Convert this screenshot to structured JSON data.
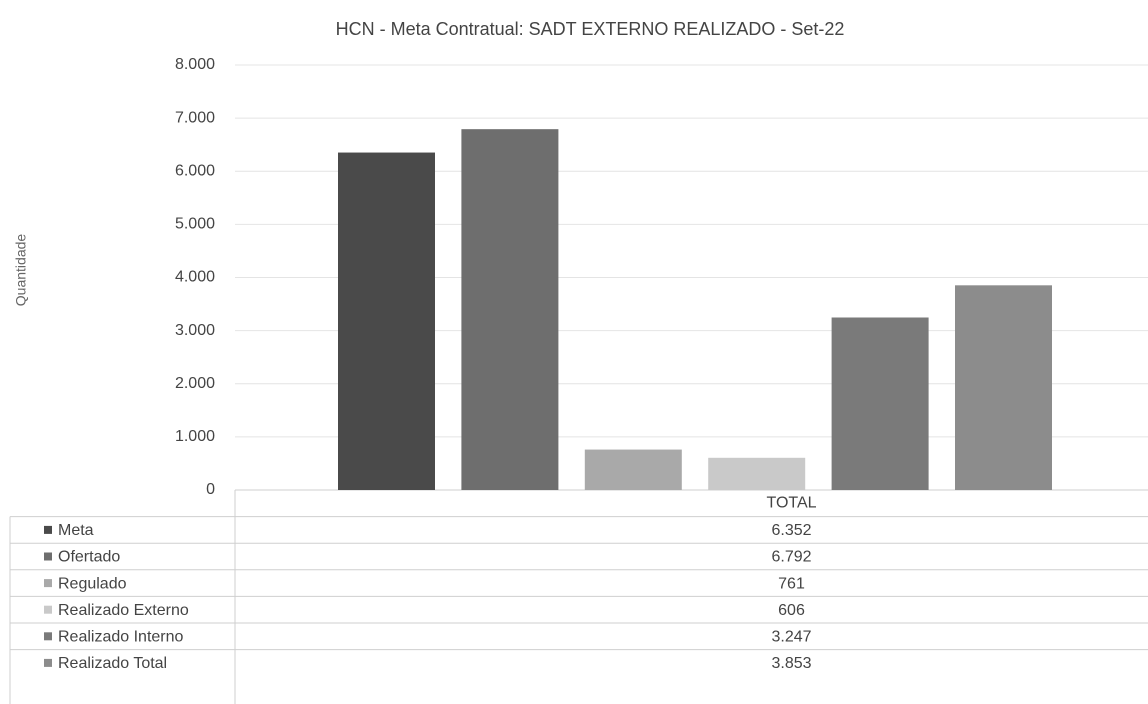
{
  "chart_data": {
    "type": "bar",
    "title": "HCN - Meta Contratual: SADT EXTERNO REALIZADO - Set-22",
    "y_label": "Quantidade",
    "categories": [
      "TOTAL"
    ],
    "series": [
      {
        "name": "Meta",
        "color": "#4a4a4a",
        "values": [
          6352
        ],
        "value_labels": [
          "6.352"
        ]
      },
      {
        "name": "Ofertado",
        "color": "#6e6e6e",
        "values": [
          6792
        ],
        "value_labels": [
          "6.792"
        ]
      },
      {
        "name": "Regulado",
        "color": "#a9a9a9",
        "values": [
          761
        ],
        "value_labels": [
          "761"
        ]
      },
      {
        "name": "Realizado Externo",
        "color": "#c9c9c9",
        "values": [
          606
        ],
        "value_labels": [
          "606"
        ]
      },
      {
        "name": "Realizado Interno",
        "color": "#7a7a7a",
        "values": [
          3247
        ],
        "value_labels": [
          "3.247"
        ]
      },
      {
        "name": "Realizado Total",
        "color": "#8c8c8c",
        "values": [
          3853
        ],
        "value_labels": [
          "3.853"
        ]
      }
    ],
    "ylim": [
      0,
      8000
    ],
    "yticks": [
      0,
      {
        "value": 1000,
        "label": "1.000"
      },
      {
        "value": 2000,
        "label": "2.000"
      },
      {
        "value": 3000,
        "label": "3.000"
      },
      {
        "value": 4000,
        "label": "4.000"
      },
      {
        "value": 5000,
        "label": "5.000"
      },
      {
        "value": 6000,
        "label": "6.000"
      },
      {
        "value": 7000,
        "label": "7.000"
      },
      {
        "value": 8000,
        "label": "8.000"
      }
    ],
    "grid": true
  }
}
